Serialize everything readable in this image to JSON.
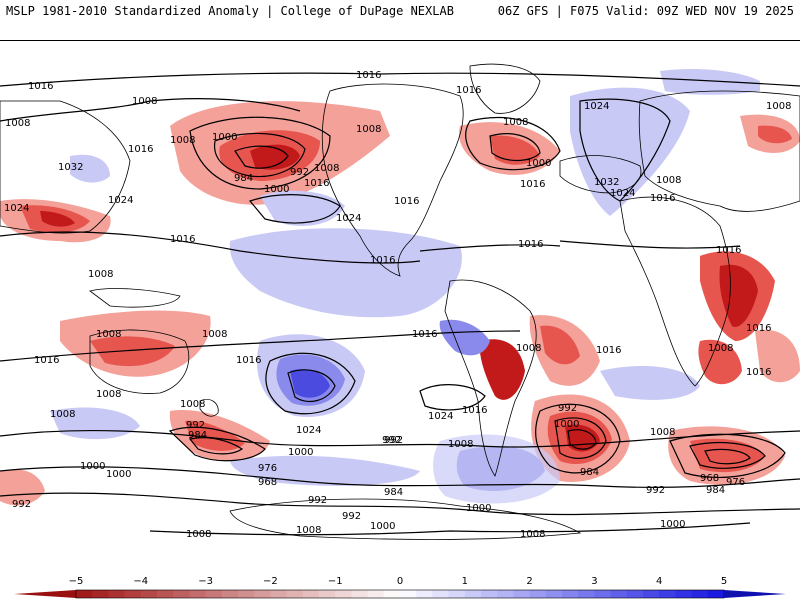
{
  "header": {
    "left": "MSLP 1981-2010 Standardized Anomaly | College of DuPage NEXLAB",
    "right": "06Z GFS | F075 Valid: 09Z WED NOV 19 2025"
  },
  "colors": {
    "ocean": "#ffffff",
    "land_outline": "#000000",
    "neg_strong": "#c21a1a",
    "neg_mid": "#e6564f",
    "neg_weak": "#f4a19a",
    "pos_weak": "#c9c9f6",
    "pos_mid": "#8a8aec",
    "pos_strong": "#4b4be0"
  },
  "isobar_labels": [
    {
      "text": "1016",
      "region": "north-pacific-west"
    },
    {
      "text": "1016",
      "region": "arctic"
    },
    {
      "text": "1016",
      "region": "north-atlantic"
    },
    {
      "text": "1008",
      "region": "north-pacific"
    },
    {
      "text": "1008",
      "region": "east-asia"
    },
    {
      "text": "1016",
      "region": "east-asia-coast"
    },
    {
      "text": "1000",
      "region": "gulf-of-alaska"
    },
    {
      "text": "1008",
      "region": "bering"
    },
    {
      "text": "1008",
      "region": "north-atlantic-low"
    },
    {
      "text": "1024",
      "region": "greenland"
    },
    {
      "text": "1008",
      "region": "arctic-siberia"
    },
    {
      "text": "1032",
      "region": "siberia"
    },
    {
      "text": "1024",
      "region": "siberia-south"
    },
    {
      "text": "992",
      "region": "gulf-of-alaska"
    },
    {
      "text": "984",
      "region": "gulf-of-alaska"
    },
    {
      "text": "1000",
      "region": "gulf-of-alaska-south"
    },
    {
      "text": "1008",
      "region": "alaska"
    },
    {
      "text": "1016",
      "region": "alaska"
    },
    {
      "text": "1008",
      "region": "canada"
    },
    {
      "text": "1000",
      "region": "north-atlantic-low"
    },
    {
      "text": "1016",
      "region": "eastern-us"
    },
    {
      "text": "1032",
      "region": "azores-high"
    },
    {
      "text": "1024",
      "region": "azores-high"
    },
    {
      "text": "1008",
      "region": "arctic-east"
    },
    {
      "text": "1016",
      "region": "north-africa"
    },
    {
      "text": "1016",
      "region": "himalaya"
    },
    {
      "text": "1024",
      "region": "east-asia"
    },
    {
      "text": "1024",
      "region": "north-pacific-high"
    },
    {
      "text": "1016",
      "region": "pacific-mid"
    },
    {
      "text": "1016",
      "region": "us-west"
    },
    {
      "text": "1016",
      "region": "atlantic-mid"
    },
    {
      "text": "1016",
      "region": "africa-east"
    },
    {
      "text": "1008",
      "region": "south-china"
    },
    {
      "text": "1008",
      "region": "indonesia"
    },
    {
      "text": "1008",
      "region": "australia-north"
    },
    {
      "text": "1016",
      "region": "south-pacific"
    },
    {
      "text": "1016",
      "region": "south-america"
    },
    {
      "text": "1016",
      "region": "south-atlantic"
    },
    {
      "text": "1016",
      "region": "indian-ocean-west"
    },
    {
      "text": "1008",
      "region": "south-america-east"
    },
    {
      "text": "1016",
      "region": "australia-west"
    },
    {
      "text": "1008",
      "region": "southern-ocean-west"
    },
    {
      "text": "1008",
      "region": "africa-south"
    },
    {
      "text": "1016",
      "region": "africa-southeast"
    },
    {
      "text": "1008",
      "region": "south-pacific"
    },
    {
      "text": "1024",
      "region": "south-pacific-high"
    },
    {
      "text": "1024",
      "region": "south-atlantic-high"
    },
    {
      "text": "1016",
      "region": "south-america-south"
    },
    {
      "text": "992",
      "region": "southern-ocean"
    },
    {
      "text": "1008",
      "region": "southern-ocean"
    },
    {
      "text": "1000",
      "region": "south-atlantic-low"
    },
    {
      "text": "992",
      "region": "south-atlantic-low"
    },
    {
      "text": "1008",
      "region": "south-indian"
    },
    {
      "text": "984",
      "region": "south-atlantic-low"
    },
    {
      "text": "1000",
      "region": "southern-ocean-west"
    },
    {
      "text": "1000",
      "region": "southern-ocean-west-2"
    },
    {
      "text": "992",
      "region": "new-zealand"
    },
    {
      "text": "984",
      "region": "new-zealand"
    },
    {
      "text": "1000",
      "region": "southern-pacific"
    },
    {
      "text": "976",
      "region": "southern-pacific"
    },
    {
      "text": "968",
      "region": "southern-pacific"
    },
    {
      "text": "968",
      "region": "south-indian-low"
    },
    {
      "text": "976",
      "region": "south-indian-low"
    },
    {
      "text": "984",
      "region": "south-indian-low"
    },
    {
      "text": "992",
      "region": "southern-ocean-2"
    },
    {
      "text": "992",
      "region": "antarctic-coast"
    },
    {
      "text": "992",
      "region": "antarctic-coast-2"
    },
    {
      "text": "1000",
      "region": "antarctic-coast-3"
    },
    {
      "text": "1000",
      "region": "antarctic-coast-4"
    },
    {
      "text": "984",
      "region": "drake-passage"
    },
    {
      "text": "992",
      "region": "far-west-south"
    },
    {
      "text": "1000",
      "region": "southern-ocean-3"
    },
    {
      "text": "1008",
      "region": "antarctica"
    },
    {
      "text": "1008",
      "region": "antarctica-2"
    },
    {
      "text": "1008",
      "region": "antarctica-3"
    },
    {
      "text": "992",
      "region": "antarctica-4"
    },
    {
      "text": "1008",
      "region": "pacific-island"
    }
  ],
  "colorbar": {
    "ticks": [
      {
        "label": "−5",
        "value": -5
      },
      {
        "label": "−4",
        "value": -4
      },
      {
        "label": "−3",
        "value": -3
      },
      {
        "label": "−2",
        "value": -2
      },
      {
        "label": "−1",
        "value": -1
      },
      {
        "label": "0",
        "value": 0
      },
      {
        "label": "1",
        "value": 1
      },
      {
        "label": "2",
        "value": 2
      },
      {
        "label": "3",
        "value": 3
      },
      {
        "label": "4",
        "value": 4
      },
      {
        "label": "5",
        "value": 5
      }
    ]
  }
}
